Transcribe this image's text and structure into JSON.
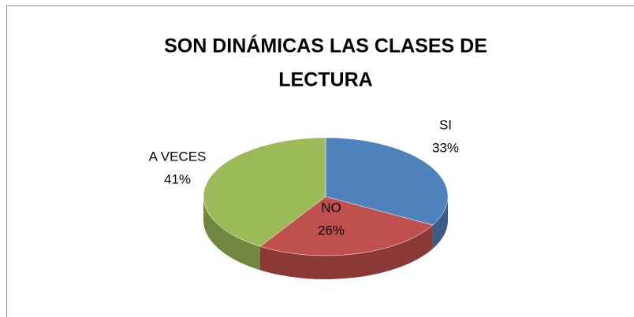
{
  "chart_data": {
    "type": "pie",
    "title": "SON DINÁMICAS LAS CLASES DE LECTURA",
    "title_lines": [
      "SON DINÁMICAS LAS CLASES DE",
      "LECTURA"
    ],
    "categories": [
      "SI",
      "NO",
      "A VECES"
    ],
    "values": [
      33,
      26,
      41
    ],
    "value_labels": [
      "33%",
      "26%",
      "41%"
    ],
    "colors": [
      "#4f81bd",
      "#c0504d",
      "#9bbb59"
    ]
  }
}
